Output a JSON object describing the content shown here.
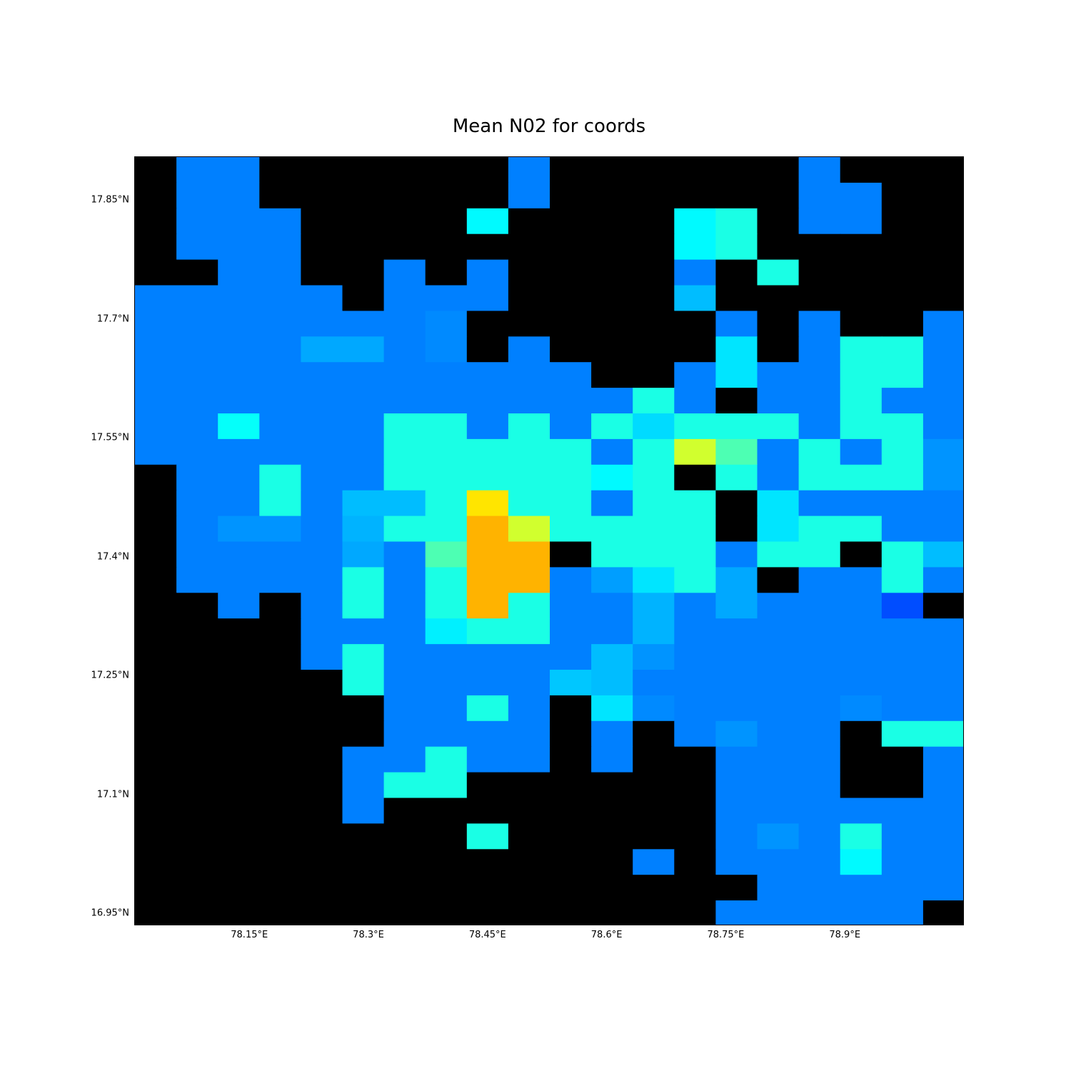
{
  "chart_data": {
    "type": "heatmap",
    "title": "Mean N02 for coords",
    "xlabel": "",
    "ylabel": "",
    "x_ticks": [
      {
        "value": 78.15,
        "label": "78.15°E"
      },
      {
        "value": 78.3,
        "label": "78.3°E"
      },
      {
        "value": 78.45,
        "label": "78.45°E"
      },
      {
        "value": 78.6,
        "label": "78.6°E"
      },
      {
        "value": 78.75,
        "label": "78.75°E"
      },
      {
        "value": 78.9,
        "label": "78.9°E"
      }
    ],
    "y_ticks": [
      {
        "value": 17.85,
        "label": "17.85°N"
      },
      {
        "value": 17.7,
        "label": "17.7°N"
      },
      {
        "value": 17.55,
        "label": "17.55°N"
      },
      {
        "value": 17.4,
        "label": "17.4°N"
      },
      {
        "value": 17.25,
        "label": "17.25°N"
      },
      {
        "value": 17.1,
        "label": "17.1°N"
      },
      {
        "value": 16.95,
        "label": "16.95°N"
      }
    ],
    "xlim": [
      78.005,
      79.05
    ],
    "ylim": [
      16.935,
      17.905
    ],
    "colormap": "jet (dark/zero cells shown black)",
    "lon_centers": [
      78.03,
      78.082,
      78.134,
      78.186,
      78.238,
      78.29,
      78.342,
      78.394,
      78.446,
      78.498,
      78.55,
      78.602,
      78.654,
      78.706,
      78.758,
      78.81,
      78.862,
      78.914,
      78.966,
      79.018
    ],
    "lat_centers": [
      17.889,
      17.857,
      17.824,
      17.792,
      17.76,
      17.728,
      17.695,
      17.663,
      17.63,
      17.598,
      17.566,
      17.533,
      17.501,
      17.469,
      17.436,
      17.404,
      17.372,
      17.339,
      17.307,
      17.275,
      17.242,
      17.21,
      17.178,
      17.145,
      17.113,
      17.081,
      17.048,
      17.016,
      16.984,
      16.951
    ],
    "grid_values": [
      [
        0,
        0.25,
        0.25,
        0,
        0,
        0,
        0,
        0,
        0,
        0.25,
        0,
        0,
        0,
        0,
        0,
        0,
        0.25,
        0,
        0,
        0
      ],
      [
        0,
        0.25,
        0.25,
        0,
        0,
        0,
        0,
        0,
        0,
        0.25,
        0,
        0,
        0,
        0,
        0,
        0,
        0.25,
        0.25,
        0,
        0
      ],
      [
        0,
        0.25,
        0.25,
        0.25,
        0,
        0,
        0,
        0,
        0.37,
        0,
        0,
        0,
        0,
        0.37,
        0.4,
        0,
        0.25,
        0.25,
        0,
        0
      ],
      [
        0,
        0.25,
        0.25,
        0.25,
        0,
        0,
        0,
        0,
        0,
        0,
        0,
        0,
        0,
        0.37,
        0.4,
        0,
        0,
        0,
        0,
        0
      ],
      [
        0,
        0,
        0.25,
        0.25,
        0,
        0,
        0.25,
        0,
        0.25,
        0,
        0,
        0,
        0,
        0.25,
        0,
        0.4,
        0,
        0,
        0,
        0
      ],
      [
        0.25,
        0.25,
        0.25,
        0.25,
        0.25,
        0,
        0.25,
        0.25,
        0.25,
        0,
        0,
        0,
        0,
        0.31,
        0,
        0,
        0,
        0,
        0,
        0
      ],
      [
        0.25,
        0.25,
        0.25,
        0.25,
        0.25,
        0.25,
        0.25,
        0.26,
        0,
        0,
        0,
        0,
        0,
        0,
        0.25,
        0,
        0.25,
        0,
        0,
        0.25
      ],
      [
        0.25,
        0.25,
        0.25,
        0.25,
        0.29,
        0.29,
        0.25,
        0.26,
        0,
        0.25,
        0,
        0,
        0,
        0,
        0.35,
        0,
        0.25,
        0.4,
        0.4,
        0.25
      ],
      [
        0.25,
        0.25,
        0.25,
        0.25,
        0.25,
        0.25,
        0.25,
        0.25,
        0.25,
        0.25,
        0.25,
        0,
        0,
        0.25,
        0.35,
        0.25,
        0.25,
        0.4,
        0.4,
        0.25
      ],
      [
        0.25,
        0.25,
        0.25,
        0.25,
        0.25,
        0.25,
        0.25,
        0.25,
        0.25,
        0.25,
        0.25,
        0.25,
        0.4,
        0.25,
        0,
        0.25,
        0.25,
        0.4,
        0.25,
        0.25
      ],
      [
        0.25,
        0.25,
        0.38,
        0.25,
        0.25,
        0.25,
        0.4,
        0.4,
        0.25,
        0.4,
        0.25,
        0.4,
        0.34,
        0.4,
        0.4,
        0.4,
        0.25,
        0.4,
        0.4,
        0.25
      ],
      [
        0.25,
        0.25,
        0.25,
        0.25,
        0.25,
        0.25,
        0.4,
        0.4,
        0.4,
        0.4,
        0.4,
        0.25,
        0.4,
        0.58,
        0.45,
        0.25,
        0.4,
        0.25,
        0.4,
        0.27
      ],
      [
        0,
        0.25,
        0.25,
        0.4,
        0.25,
        0.25,
        0.4,
        0.4,
        0.4,
        0.4,
        0.4,
        0.37,
        0.4,
        0,
        0.4,
        0.25,
        0.4,
        0.4,
        0.4,
        0.27
      ],
      [
        0,
        0.25,
        0.25,
        0.4,
        0.25,
        0.31,
        0.31,
        0.4,
        0.65,
        0.4,
        0.4,
        0.25,
        0.4,
        0.4,
        0,
        0.35,
        0.25,
        0.25,
        0.25,
        0.25
      ],
      [
        0,
        0.25,
        0.27,
        0.27,
        0.25,
        0.3,
        0.4,
        0.4,
        0.7,
        0.58,
        0.4,
        0.4,
        0.4,
        0.4,
        0,
        0.35,
        0.4,
        0.4,
        0.25,
        0.25
      ],
      [
        0,
        0.25,
        0.25,
        0.25,
        0.25,
        0.29,
        0.25,
        0.45,
        0.7,
        0.7,
        0,
        0.4,
        0.4,
        0.4,
        0.25,
        0.4,
        0.4,
        0,
        0.4,
        0.31
      ],
      [
        0,
        0.25,
        0.25,
        0.25,
        0.25,
        0.4,
        0.25,
        0.4,
        0.7,
        0.7,
        0.25,
        0.28,
        0.35,
        0.4,
        0.29,
        0,
        0.25,
        0.25,
        0.4,
        0.25
      ],
      [
        0,
        0,
        0.25,
        0,
        0.25,
        0.4,
        0.25,
        0.4,
        0.7,
        0.4,
        0.25,
        0.25,
        0.3,
        0.25,
        0.29,
        0.25,
        0.25,
        0.25,
        0.2,
        0
      ],
      [
        0,
        0,
        0,
        0,
        0.25,
        0.25,
        0.25,
        0.36,
        0.4,
        0.4,
        0.25,
        0.25,
        0.3,
        0.25,
        0.25,
        0.25,
        0.25,
        0.25,
        0.25,
        0.25
      ],
      [
        0,
        0,
        0,
        0,
        0.25,
        0.4,
        0.25,
        0.25,
        0.25,
        0.25,
        0.25,
        0.31,
        0.27,
        0.25,
        0.25,
        0.25,
        0.25,
        0.25,
        0.25,
        0.25
      ],
      [
        0,
        0,
        0,
        0,
        0,
        0.4,
        0.25,
        0.25,
        0.25,
        0.25,
        0.32,
        0.31,
        0.25,
        0.25,
        0.25,
        0.25,
        0.25,
        0.25,
        0.25,
        0.25
      ],
      [
        0,
        0,
        0,
        0,
        0,
        0,
        0.25,
        0.25,
        0.4,
        0.25,
        0,
        0.35,
        0.26,
        0.25,
        0.25,
        0.25,
        0.25,
        0.26,
        0.25,
        0.25
      ],
      [
        0,
        0,
        0,
        0,
        0,
        0,
        0.25,
        0.25,
        0.25,
        0.25,
        0,
        0.25,
        0,
        0.25,
        0.27,
        0.25,
        0.25,
        0,
        0.4,
        0.4
      ],
      [
        0,
        0,
        0,
        0,
        0,
        0.25,
        0.25,
        0.4,
        0.25,
        0.25,
        0,
        0.25,
        0,
        0,
        0.25,
        0.25,
        0.25,
        0,
        0,
        0.25
      ],
      [
        0,
        0,
        0,
        0,
        0,
        0.25,
        0.4,
        0.4,
        0,
        0,
        0,
        0,
        0,
        0,
        0.25,
        0.25,
        0.25,
        0,
        0,
        0.25
      ],
      [
        0,
        0,
        0,
        0,
        0,
        0.25,
        0,
        0,
        0,
        0,
        0,
        0,
        0,
        0,
        0.25,
        0.25,
        0.25,
        0.25,
        0.25,
        0.25
      ],
      [
        0,
        0,
        0,
        0,
        0,
        0,
        0,
        0,
        0.4,
        0,
        0,
        0,
        0,
        0,
        0.25,
        0.27,
        0.25,
        0.4,
        0.25,
        0.25
      ],
      [
        0,
        0,
        0,
        0,
        0,
        0,
        0,
        0,
        0,
        0,
        0,
        0,
        0.25,
        0,
        0.25,
        0.25,
        0.25,
        0.37,
        0.25,
        0.25
      ],
      [
        0,
        0,
        0,
        0,
        0,
        0,
        0,
        0,
        0,
        0,
        0,
        0,
        0,
        0,
        0,
        0.25,
        0.25,
        0.25,
        0.25,
        0.25
      ],
      [
        0,
        0,
        0,
        0,
        0,
        0,
        0,
        0,
        0,
        0,
        0,
        0,
        0,
        0,
        0.25,
        0.25,
        0.25,
        0.25,
        0.25,
        0
      ]
    ]
  }
}
